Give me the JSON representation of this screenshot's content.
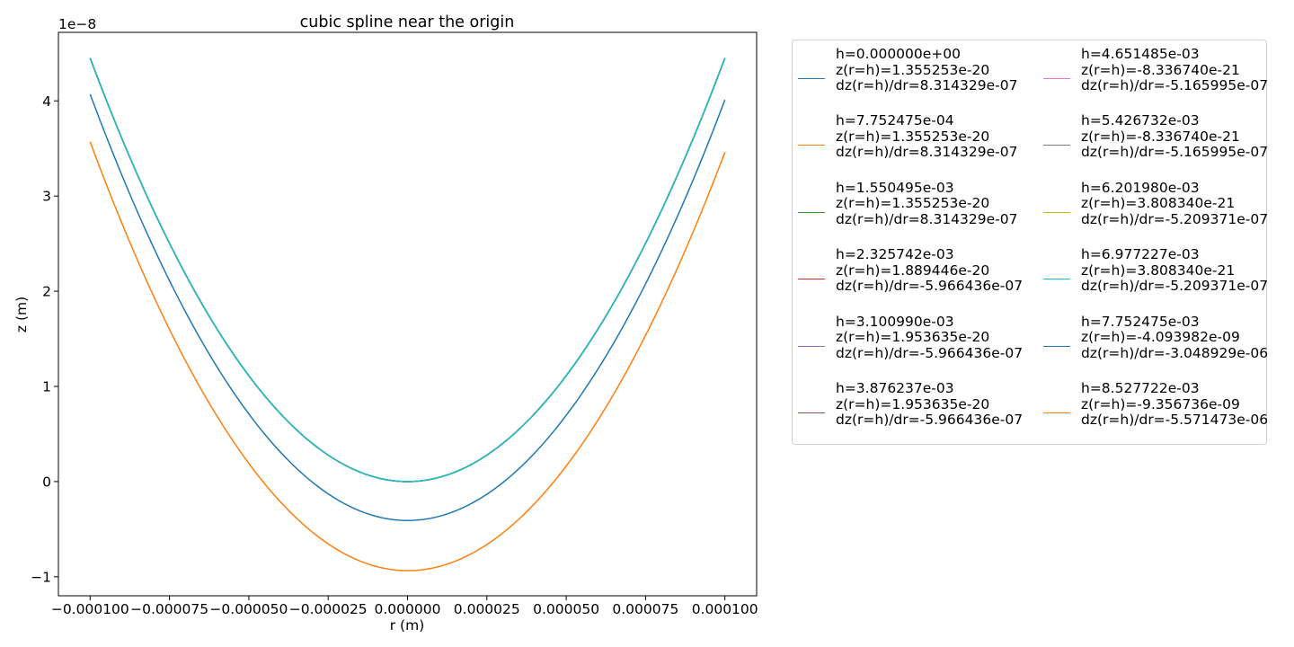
{
  "chart_data": {
    "type": "line",
    "title": "cubic spline near the origin",
    "xlabel": "r (m)",
    "ylabel": "z (m)",
    "y_offset_text": "1e−8",
    "xlim": [
      -0.00011,
      0.00011
    ],
    "ylim": [
      -1.2e-08,
      4.72e-08
    ],
    "x_ticks": [
      -0.0001,
      -7.5e-05,
      -5e-05,
      -2.5e-05,
      0.0,
      2.5e-05,
      5e-05,
      7.5e-05,
      0.0001
    ],
    "x_tick_labels": [
      "−0.000100",
      "−0.000075",
      "−0.000050",
      "−0.000025",
      "0.000000",
      "0.000025",
      "0.000050",
      "0.000075",
      "0.000100"
    ],
    "y_ticks": [
      -1e-08,
      0,
      1e-08,
      2e-08,
      3e-08,
      4e-08
    ],
    "y_tick_labels": [
      "−1",
      "0",
      "1",
      "2",
      "3",
      "4"
    ],
    "grid": false,
    "legend_position": "outside-right",
    "legend_columns": 2,
    "x_range": [
      -0.0001,
      0.0001
    ],
    "series": [
      {
        "name": "h=0.000000e+00\nz(r=h)=1.355253e-20\ndz(r=h)/dr=8.314329e-07",
        "color": "#1f77b4",
        "z0": 0.0,
        "z_left": 4.45e-08,
        "z_right": 4.45e-08
      },
      {
        "name": "h=7.752475e-04\nz(r=h)=1.355253e-20\ndz(r=h)/dr=8.314329e-07",
        "color": "#ff7f0e",
        "z0": 0.0,
        "z_left": 4.45e-08,
        "z_right": 4.45e-08
      },
      {
        "name": "h=1.550495e-03\nz(r=h)=1.355253e-20\ndz(r=h)/dr=8.314329e-07",
        "color": "#2ca02c",
        "z0": 0.0,
        "z_left": 4.45e-08,
        "z_right": 4.45e-08
      },
      {
        "name": "h=2.325742e-03\nz(r=h)=1.889446e-20\ndz(r=h)/dr=-5.966436e-07",
        "color": "#d62728",
        "z0": 0.0,
        "z_left": 4.45e-08,
        "z_right": 4.45e-08
      },
      {
        "name": "h=3.100990e-03\nz(r=h)=1.953635e-20\ndz(r=h)/dr=-5.966436e-07",
        "color": "#9467bd",
        "z0": 0.0,
        "z_left": 4.45e-08,
        "z_right": 4.45e-08
      },
      {
        "name": "h=3.876237e-03\nz(r=h)=1.953635e-20\ndz(r=h)/dr=-5.966436e-07",
        "color": "#8c564b",
        "z0": 0.0,
        "z_left": 4.45e-08,
        "z_right": 4.45e-08
      },
      {
        "name": "h=4.651485e-03\nz(r=h)=-8.336740e-21\ndz(r=h)/dr=-5.165995e-07",
        "color": "#e377c2",
        "z0": 0.0,
        "z_left": 4.45e-08,
        "z_right": 4.45e-08
      },
      {
        "name": "h=5.426732e-03\nz(r=h)=-8.336740e-21\ndz(r=h)/dr=-5.165995e-07",
        "color": "#7f7f7f",
        "z0": 0.0,
        "z_left": 4.45e-08,
        "z_right": 4.45e-08
      },
      {
        "name": "h=6.201980e-03\nz(r=h)=3.808340e-21\ndz(r=h)/dr=-5.209371e-07",
        "color": "#bcbd22",
        "z0": 0.0,
        "z_left": 4.45e-08,
        "z_right": 4.45e-08
      },
      {
        "name": "h=6.977227e-03\nz(r=h)=3.808340e-21\ndz(r=h)/dr=-5.209371e-07",
        "color": "#17becf",
        "z0": 0.0,
        "z_left": 4.45e-08,
        "z_right": 4.45e-08
      },
      {
        "name": "h=7.752475e-03\nz(r=h)=-4.093982e-09\ndz(r=h)/dr=-3.048929e-06",
        "color": "#1f77b4",
        "z0": -4.09e-09,
        "z_left": 4.07e-08,
        "z_right": 4.01e-08
      },
      {
        "name": "h=8.527722e-03\nz(r=h)=-9.356736e-09\ndz(r=h)/dr=-5.571473e-06",
        "color": "#ff7f0e",
        "z0": -9.36e-09,
        "z_left": 3.57e-08,
        "z_right": 3.46e-08
      }
    ]
  }
}
